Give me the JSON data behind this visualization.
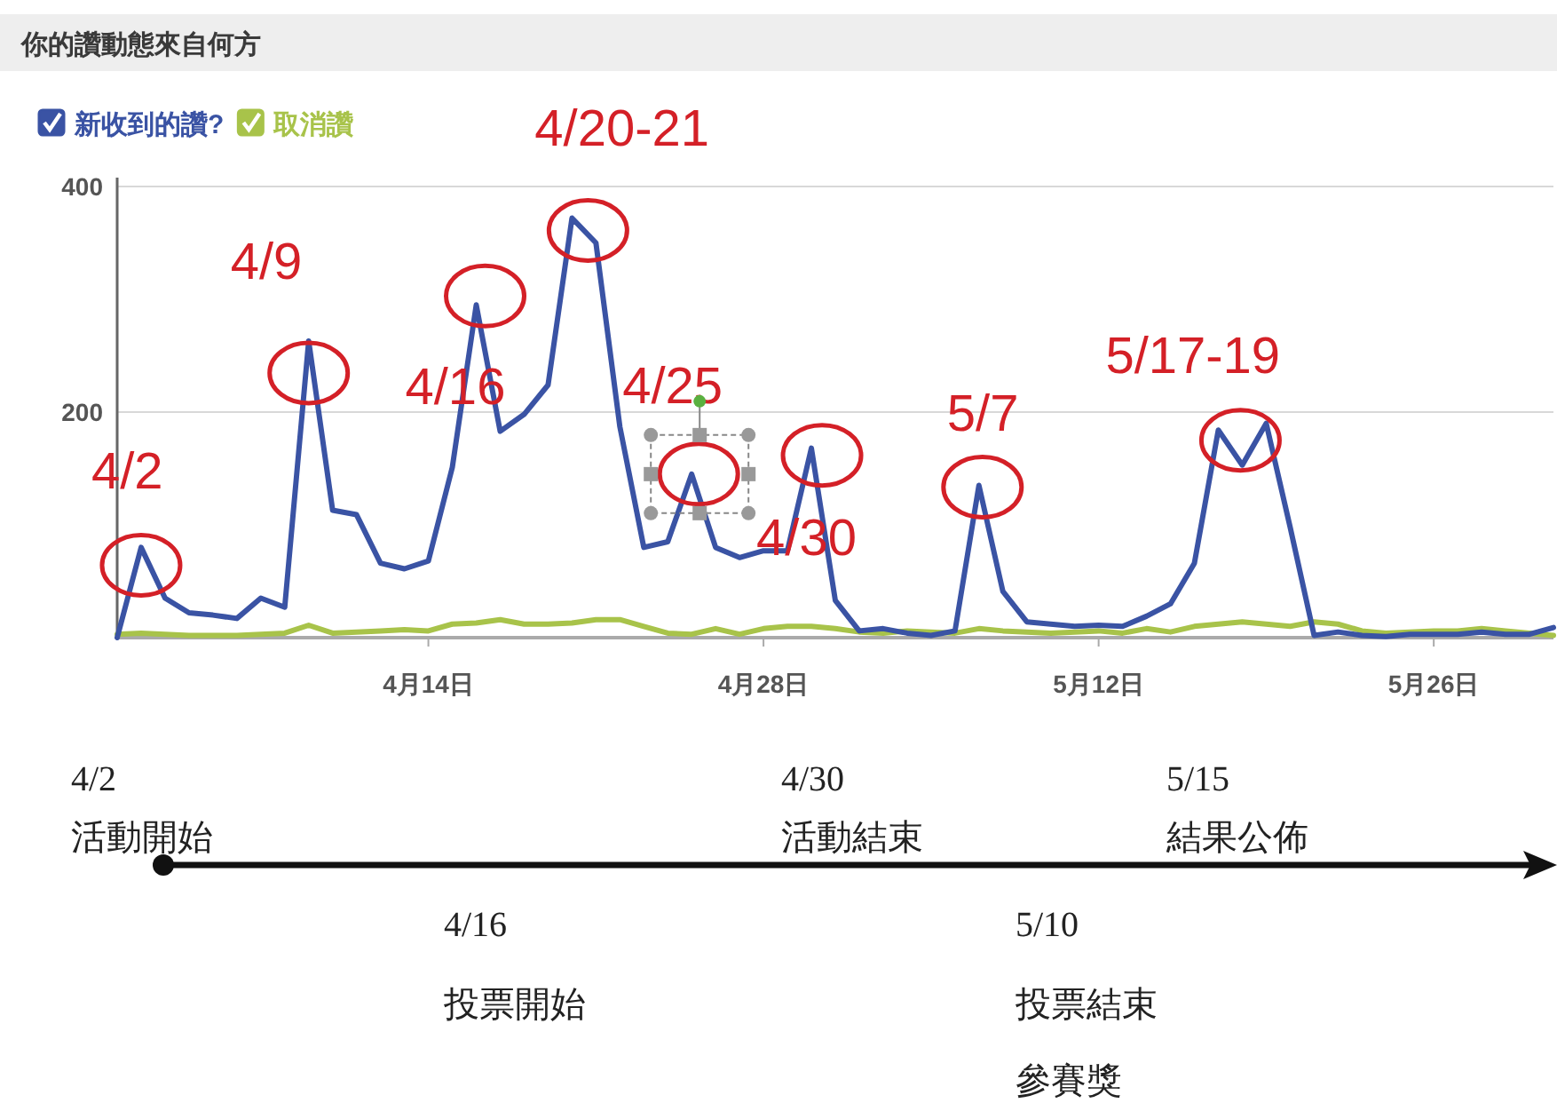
{
  "chart_data": {
    "type": "line",
    "title": "你的讚動態來自何方",
    "xlim": [
      "--04-01",
      "--05-31"
    ],
    "xticks": [
      {
        "value": "--04-14",
        "label": "4月14日"
      },
      {
        "value": "--04-28",
        "label": "4月28日"
      },
      {
        "value": "--05-12",
        "label": "5月12日"
      },
      {
        "value": "--05-26",
        "label": "5月26日"
      }
    ],
    "ylim": [
      0,
      400
    ],
    "yticks": [
      200,
      400
    ],
    "grid": "y",
    "legend": "top left",
    "x": [
      "--04-01",
      "--04-02",
      "--04-03",
      "--04-04",
      "--04-05",
      "--04-06",
      "--04-07",
      "--04-08",
      "--04-09",
      "--04-10",
      "--04-11",
      "--04-12",
      "--04-13",
      "--04-14",
      "--04-15",
      "--04-16",
      "--04-17",
      "--04-18",
      "--04-19",
      "--04-20",
      "--04-21",
      "--04-22",
      "--04-23",
      "--04-24",
      "--04-25",
      "--04-26",
      "--04-27",
      "--04-28",
      "--04-29",
      "--04-30",
      "--05-01",
      "--05-02",
      "--05-03",
      "--05-04",
      "--05-05",
      "--05-06",
      "--05-07",
      "--05-08",
      "--05-09",
      "--05-10",
      "--05-11",
      "--05-12",
      "--05-13",
      "--05-14",
      "--05-15",
      "--05-16",
      "--05-17",
      "--05-18",
      "--05-19",
      "--05-20",
      "--05-21",
      "--05-22",
      "--05-23",
      "--05-24",
      "--05-25",
      "--05-26",
      "--05-27",
      "--05-28",
      "--05-29",
      "--05-30",
      "--05-31"
    ],
    "series": [
      {
        "name": "新收到的讚?",
        "color": "#3a53a4",
        "values": [
          0,
          80,
          35,
          22,
          20,
          17,
          35,
          27,
          263,
          113,
          109,
          66,
          61,
          68,
          151,
          295,
          183,
          198,
          224,
          372,
          350,
          187,
          80,
          85,
          145,
          80,
          71,
          77,
          77,
          168,
          33,
          6,
          8,
          4,
          2,
          6,
          135,
          41,
          14,
          12,
          10,
          11,
          10,
          19,
          30,
          66,
          184,
          153,
          190,
          98,
          2,
          5,
          2,
          1,
          3,
          3,
          3,
          5,
          3,
          3,
          9
        ]
      },
      {
        "name": "取消讚",
        "color": "#a8c34a",
        "values": [
          3,
          4,
          3,
          2,
          2,
          2,
          3,
          4,
          11,
          4,
          5,
          6,
          7,
          6,
          12,
          13,
          16,
          12,
          12,
          13,
          16,
          16,
          10,
          4,
          3,
          8,
          3,
          8,
          10,
          10,
          8,
          5,
          4,
          6,
          5,
          4,
          8,
          6,
          5,
          4,
          5,
          6,
          4,
          8,
          5,
          10,
          12,
          14,
          12,
          10,
          14,
          12,
          6,
          4,
          5,
          6,
          6,
          8,
          6,
          4,
          2
        ]
      }
    ],
    "annotations": [
      {
        "text": "4/2",
        "x": "--04-02",
        "y": 80
      },
      {
        "text": "4/9",
        "x": "--04-09",
        "y": 263
      },
      {
        "text": "4/16",
        "x": "--04-16",
        "y": 295
      },
      {
        "text": "4/20-21",
        "x": "--04-20",
        "y": 372
      },
      {
        "text": "4/25",
        "x": "--04-25",
        "y": 145
      },
      {
        "text": "4/30",
        "x": "--04-30",
        "y": 168
      },
      {
        "text": "5/7",
        "x": "--05-07",
        "y": 135
      },
      {
        "text": "5/17-19",
        "x": "--05-18",
        "y": 153
      },
      "4/2",
      "活動開始",
      "4/16",
      "投票開始",
      "4/30",
      "活動結束",
      "5/10",
      "投票結束",
      "參賽獎",
      "5/15",
      "結果公佈"
    ]
  }
}
